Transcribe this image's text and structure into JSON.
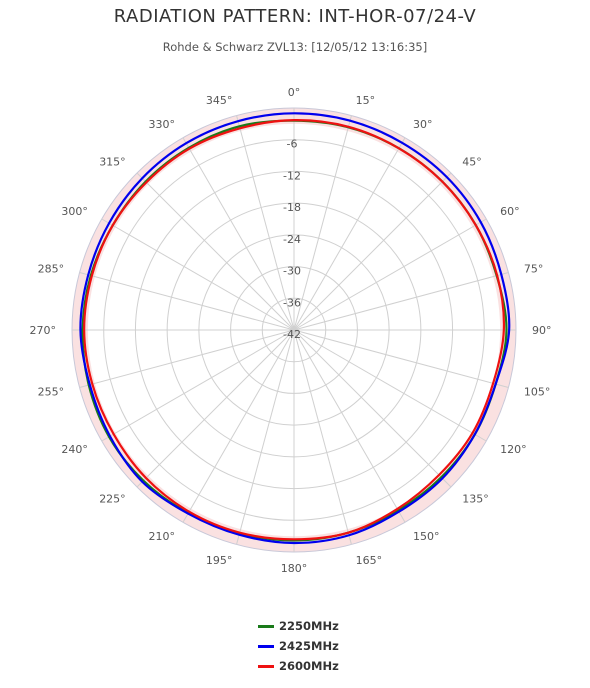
{
  "chart_data": {
    "type": "polar-line",
    "title": "RADIATION PATTERN: INT-HOR-07/24-V",
    "subtitle": "Rohde & Schwarz ZVL13: [12/05/12 13:16:35]",
    "angle_ticks": [
      "0°",
      "15°",
      "30°",
      "45°",
      "60°",
      "75°",
      "90°",
      "105°",
      "120°",
      "135°",
      "150°",
      "165°",
      "180°",
      "195°",
      "210°",
      "225°",
      "240°",
      "255°",
      "270°",
      "285°",
      "300°",
      "315°",
      "330°",
      "345°"
    ],
    "radial_ticks": [
      "-6",
      "-12",
      "-18",
      "-24",
      "-30",
      "-36",
      "-42"
    ],
    "radial_range": [
      -42,
      0
    ],
    "band": {
      "from": -3,
      "to": 0,
      "color": "#f9dcdc"
    },
    "angles": [
      0,
      15,
      30,
      45,
      60,
      75,
      90,
      105,
      120,
      135,
      150,
      165,
      180,
      195,
      210,
      225,
      240,
      255,
      270,
      285,
      300,
      315,
      330,
      345
    ],
    "series": [
      {
        "name": "2250MHz",
        "color": "#1a7a1a",
        "values": [
          -2.4,
          -2.3,
          -2.3,
          -2.3,
          -2.3,
          -2.3,
          -1.8,
          -2.5,
          -2.5,
          -2.6,
          -2.6,
          -2.3,
          -2.2,
          -2.2,
          -2.0,
          -1.7,
          -1.6,
          -1.8,
          -2.0,
          -2.2,
          -2.4,
          -2.3,
          -2.2,
          -2.1
        ]
      },
      {
        "name": "2425MHz",
        "color": "#0000ee",
        "values": [
          -1.0,
          -1.0,
          -1.1,
          -1.1,
          -1.2,
          -1.4,
          -1.3,
          -2.5,
          -2.5,
          -2.3,
          -2.3,
          -1.8,
          -1.7,
          -1.9,
          -1.9,
          -1.4,
          -1.8,
          -2.0,
          -1.6,
          -1.7,
          -1.6,
          -1.4,
          -1.2,
          -1.1
        ]
      },
      {
        "name": "2600MHz",
        "color": "#ee1111",
        "values": [
          -2.3,
          -2.2,
          -2.3,
          -2.3,
          -2.3,
          -2.2,
          -2.3,
          -3.0,
          -3.0,
          -3.2,
          -2.9,
          -2.3,
          -2.4,
          -2.3,
          -2.3,
          -2.4,
          -2.6,
          -2.5,
          -2.3,
          -2.4,
          -2.4,
          -2.5,
          -2.4,
          -2.5
        ]
      }
    ]
  }
}
